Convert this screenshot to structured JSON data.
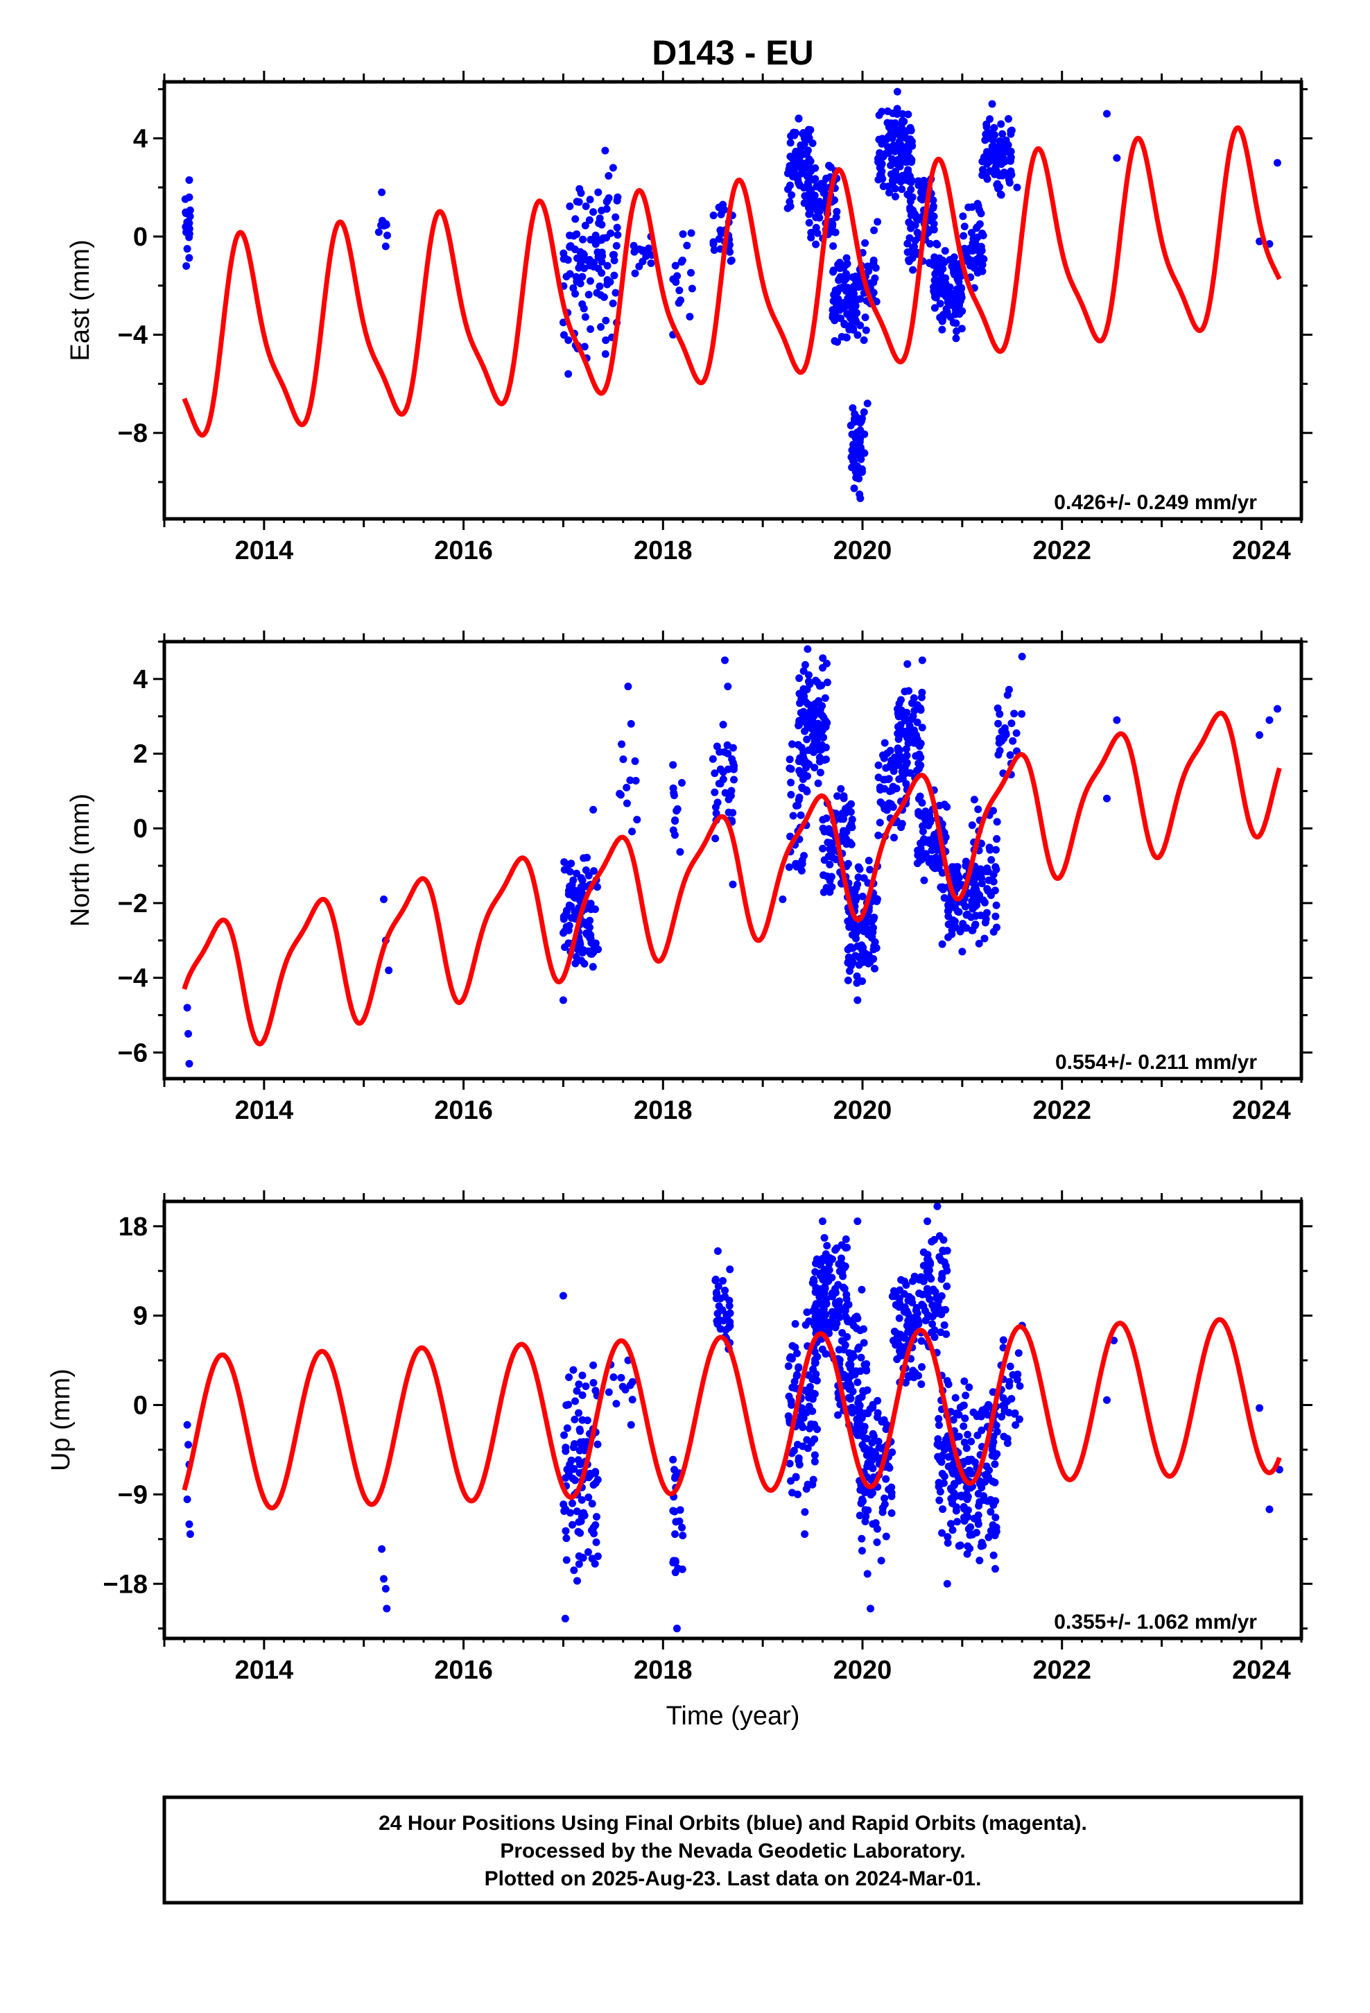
{
  "title": "D143 - EU",
  "xlabel": "Time (year)",
  "footer": {
    "line1": "24 Hour Positions Using Final Orbits (blue) and Rapid Orbits (magenta).",
    "line2": "Processed by the Nevada Geodetic Laboratory.",
    "line3": "Plotted on 2025-Aug-23. Last data on 2024-Mar-01."
  },
  "colors": {
    "data": "#0000ff",
    "model": "#ff0000",
    "axis": "#000000"
  },
  "chart_data": [
    {
      "type": "scatter",
      "ylabel": "East (mm)",
      "rate_text": "0.426+/- 0.249 mm/yr",
      "xlim": [
        2013.0,
        2024.4
      ],
      "ylim": [
        -11.5,
        6.3
      ],
      "xticks": [
        2014,
        2016,
        2018,
        2020,
        2022,
        2024
      ],
      "yticks": [
        -8,
        -4,
        0,
        4
      ],
      "model": {
        "mean": -2.3,
        "rate": 0.426,
        "ref_year": 2018.5,
        "amp_annual": 3.7,
        "phase_annual": 0.55,
        "amp_semi": 1.0,
        "phase_semi": 0.1
      },
      "series": [
        {
          "values": [
            [
              2013.22,
              -1.2
            ],
            [
              2013.23,
              -0.5
            ],
            [
              2013.24,
              0.6
            ],
            [
              2013.25,
              1.6
            ],
            [
              2013.25,
              2.3
            ],
            [
              2015.18,
              1.8
            ],
            [
              2015.2,
              0.5
            ],
            [
              2015.22,
              -0.4
            ],
            [
              2017.0,
              -3.5
            ],
            [
              2017.05,
              -5.6
            ],
            [
              2017.1,
              -2.1
            ],
            [
              2017.2,
              -0.7
            ],
            [
              2017.3,
              1.0
            ],
            [
              2017.35,
              1.8
            ],
            [
              2017.42,
              3.5
            ],
            [
              2017.5,
              2.8
            ],
            [
              2017.72,
              -1.5
            ],
            [
              2017.88,
              0.0
            ],
            [
              2018.1,
              -4.0
            ],
            [
              2018.2,
              0.1
            ],
            [
              2018.6,
              1.3
            ],
            [
              2018.68,
              -1.0
            ],
            [
              2019.3,
              2.5
            ],
            [
              2019.36,
              4.8
            ],
            [
              2019.5,
              3.8
            ],
            [
              2019.7,
              0.5
            ],
            [
              2019.85,
              -2.8
            ],
            [
              2019.92,
              -7.5
            ],
            [
              2019.97,
              -10.5
            ],
            [
              2020.05,
              -6.8
            ],
            [
              2020.15,
              0.6
            ],
            [
              2020.3,
              4.0
            ],
            [
              2020.35,
              5.9
            ],
            [
              2020.45,
              4.3
            ],
            [
              2020.6,
              1.5
            ],
            [
              2020.9,
              -2.8
            ],
            [
              2021.05,
              -1.0
            ],
            [
              2021.2,
              2.5
            ],
            [
              2021.3,
              5.4
            ],
            [
              2021.45,
              3.6
            ],
            [
              2021.55,
              2.0
            ],
            [
              2022.45,
              5.0
            ],
            [
              2022.55,
              3.2
            ],
            [
              2023.98,
              -0.2
            ],
            [
              2024.08,
              -0.3
            ],
            [
              2024.16,
              3.0
            ]
          ],
          "clusters": [
            [
              2013.2,
              2013.26,
              -1.5,
              2.3,
              14
            ],
            [
              2015.15,
              2015.24,
              -0.5,
              1.9,
              8
            ],
            [
              2017.0,
              2017.55,
              -5.5,
              3.4,
              110
            ],
            [
              2017.7,
              2017.9,
              -1.6,
              0.1,
              12
            ],
            [
              2018.1,
              2018.3,
              -4.0,
              0.3,
              14
            ],
            [
              2018.5,
              2018.7,
              -1.2,
              1.6,
              24
            ],
            [
              2019.25,
              2019.48,
              1.0,
              4.9,
              80
            ],
            [
              2019.45,
              2019.75,
              -0.5,
              3.2,
              80
            ],
            [
              2019.7,
              2019.95,
              -4.5,
              -0.5,
              90
            ],
            [
              2019.88,
              2020.02,
              -11.0,
              -6.5,
              45
            ],
            [
              2019.95,
              2020.15,
              -4.5,
              0.5,
              40
            ],
            [
              2020.15,
              2020.5,
              1.5,
              5.5,
              120
            ],
            [
              2020.45,
              2020.75,
              -1.5,
              2.8,
              90
            ],
            [
              2020.7,
              2021.0,
              -4.3,
              -0.2,
              110
            ],
            [
              2021.0,
              2021.22,
              -2.5,
              1.5,
              50
            ],
            [
              2021.2,
              2021.5,
              1.5,
              5.0,
              80
            ]
          ]
        }
      ]
    },
    {
      "type": "scatter",
      "ylabel": "North (mm)",
      "rate_text": "0.554+/- 0.211 mm/yr",
      "xlim": [
        2013.0,
        2024.4
      ],
      "ylim": [
        -6.7,
        5.0
      ],
      "xticks": [
        2014,
        2016,
        2018,
        2020,
        2022,
        2024
      ],
      "yticks": [
        -6,
        -4,
        -2,
        0,
        2,
        4
      ],
      "model": {
        "mean": -1.3,
        "rate": 0.554,
        "ref_year": 2018.5,
        "amp_annual": 1.6,
        "phase_annual": 0.25,
        "amp_semi": 0.45,
        "phase_semi": 0.05
      },
      "series": [
        {
          "values": [
            [
              2013.23,
              -4.8
            ],
            [
              2013.24,
              -5.5
            ],
            [
              2013.25,
              -6.3
            ],
            [
              2015.2,
              -1.9
            ],
            [
              2015.22,
              -3.0
            ],
            [
              2015.25,
              -3.8
            ],
            [
              2017.0,
              -4.6
            ],
            [
              2017.3,
              0.5
            ],
            [
              2017.65,
              3.8
            ],
            [
              2017.68,
              2.8
            ],
            [
              2017.72,
              1.8
            ],
            [
              2018.1,
              1.7
            ],
            [
              2018.12,
              0.2
            ],
            [
              2018.62,
              4.5
            ],
            [
              2018.65,
              3.8
            ],
            [
              2018.7,
              -1.5
            ],
            [
              2019.2,
              -1.9
            ],
            [
              2019.45,
              4.8
            ],
            [
              2019.6,
              4.3
            ],
            [
              2019.95,
              -4.6
            ],
            [
              2020.45,
              4.4
            ],
            [
              2020.6,
              4.5
            ],
            [
              2020.8,
              -3.1
            ],
            [
              2021.0,
              -3.3
            ],
            [
              2021.6,
              4.6
            ],
            [
              2022.45,
              0.8
            ],
            [
              2022.55,
              2.9
            ],
            [
              2023.98,
              2.5
            ],
            [
              2024.08,
              2.9
            ],
            [
              2024.16,
              3.2
            ]
          ],
          "clusters": [
            [
              2017.0,
              2017.35,
              -4.0,
              -0.5,
              110
            ],
            [
              2017.55,
              2017.75,
              -0.5,
              2.5,
              10
            ],
            [
              2018.1,
              2018.2,
              -1.3,
              1.7,
              10
            ],
            [
              2018.5,
              2018.72,
              -0.5,
              3.0,
              35
            ],
            [
              2019.25,
              2019.45,
              -1.5,
              2.5,
              40
            ],
            [
              2019.35,
              2019.65,
              1.0,
              4.8,
              110
            ],
            [
              2019.6,
              2019.9,
              -2.0,
              1.2,
              80
            ],
            [
              2019.85,
              2020.15,
              -4.5,
              -0.5,
              110
            ],
            [
              2020.15,
              2020.45,
              -0.5,
              2.5,
              60
            ],
            [
              2020.35,
              2020.6,
              1.0,
              4.0,
              80
            ],
            [
              2020.55,
              2020.85,
              -2.0,
              1.2,
              80
            ],
            [
              2020.85,
              2021.15,
              -3.2,
              -0.5,
              90
            ],
            [
              2021.1,
              2021.35,
              -3.5,
              1.0,
              60
            ],
            [
              2021.35,
              2021.6,
              1.0,
              4.0,
              25
            ]
          ]
        }
      ]
    },
    {
      "type": "scatter",
      "ylabel": "Up (mm)",
      "rate_text": "0.355+/- 1.062 mm/yr",
      "xlim": [
        2013.0,
        2024.4
      ],
      "ylim": [
        -23.5,
        20.5
      ],
      "xticks": [
        2014,
        2016,
        2018,
        2020,
        2022,
        2024
      ],
      "yticks": [
        -18,
        -9,
        0,
        9,
        18
      ],
      "model": {
        "mean": -1.0,
        "rate": 0.355,
        "ref_year": 2018.5,
        "amp_annual": 7.8,
        "phase_annual": 0.33,
        "amp_semi": 0.0,
        "phase_semi": 0.0
      },
      "series": [
        {
          "values": [
            [
              2013.23,
              -2.0
            ],
            [
              2013.24,
              -4.0
            ],
            [
              2013.25,
              -6.0
            ],
            [
              2013.23,
              -9.5
            ],
            [
              2013.25,
              -12.0
            ],
            [
              2013.26,
              -13.0
            ],
            [
              2015.18,
              -14.5
            ],
            [
              2015.2,
              -17.5
            ],
            [
              2015.22,
              -18.5
            ],
            [
              2015.23,
              -20.5
            ],
            [
              2017.0,
              11.0
            ],
            [
              2017.02,
              -21.5
            ],
            [
              2017.3,
              4.0
            ],
            [
              2017.65,
              4.5
            ],
            [
              2017.68,
              -2.0
            ],
            [
              2018.1,
              -5.5
            ],
            [
              2018.12,
              -13.0
            ],
            [
              2018.14,
              -22.5
            ],
            [
              2018.55,
              15.5
            ],
            [
              2018.6,
              12.5
            ],
            [
              2019.35,
              -9.0
            ],
            [
              2019.42,
              -13.0
            ],
            [
              2019.6,
              18.5
            ],
            [
              2019.95,
              18.5
            ],
            [
              2020.05,
              -17.0
            ],
            [
              2020.08,
              -20.5
            ],
            [
              2020.65,
              18.5
            ],
            [
              2020.75,
              20.0
            ],
            [
              2020.85,
              -18.0
            ],
            [
              2021.05,
              -15.0
            ],
            [
              2021.6,
              8.0
            ],
            [
              2022.45,
              0.5
            ],
            [
              2022.52,
              6.5
            ],
            [
              2023.98,
              -0.3
            ],
            [
              2024.08,
              -10.5
            ],
            [
              2024.18,
              -6.5
            ]
          ],
          "clusters": [
            [
              2017.0,
              2017.35,
              -19.0,
              4.0,
              110
            ],
            [
              2017.45,
              2017.72,
              -2.0,
              6.0,
              10
            ],
            [
              2018.1,
              2018.2,
              -18.0,
              -5.0,
              20
            ],
            [
              2018.5,
              2018.68,
              5.0,
              15.0,
              35
            ],
            [
              2019.25,
              2019.55,
              -11.0,
              10.0,
              90
            ],
            [
              2019.5,
              2019.85,
              4.0,
              18.0,
              130
            ],
            [
              2019.75,
              2020.05,
              -5.0,
              12.0,
              90
            ],
            [
              2019.95,
              2020.3,
              -16.0,
              3.0,
              110
            ],
            [
              2020.3,
              2020.6,
              0.0,
              14.0,
              90
            ],
            [
              2020.6,
              2020.85,
              5.0,
              18.0,
              70
            ],
            [
              2020.75,
              2021.05,
              -16.0,
              4.0,
              110
            ],
            [
              2021.05,
              2021.35,
              -17.0,
              2.0,
              90
            ],
            [
              2021.3,
              2021.58,
              -6.0,
              8.0,
              40
            ]
          ]
        }
      ]
    }
  ]
}
